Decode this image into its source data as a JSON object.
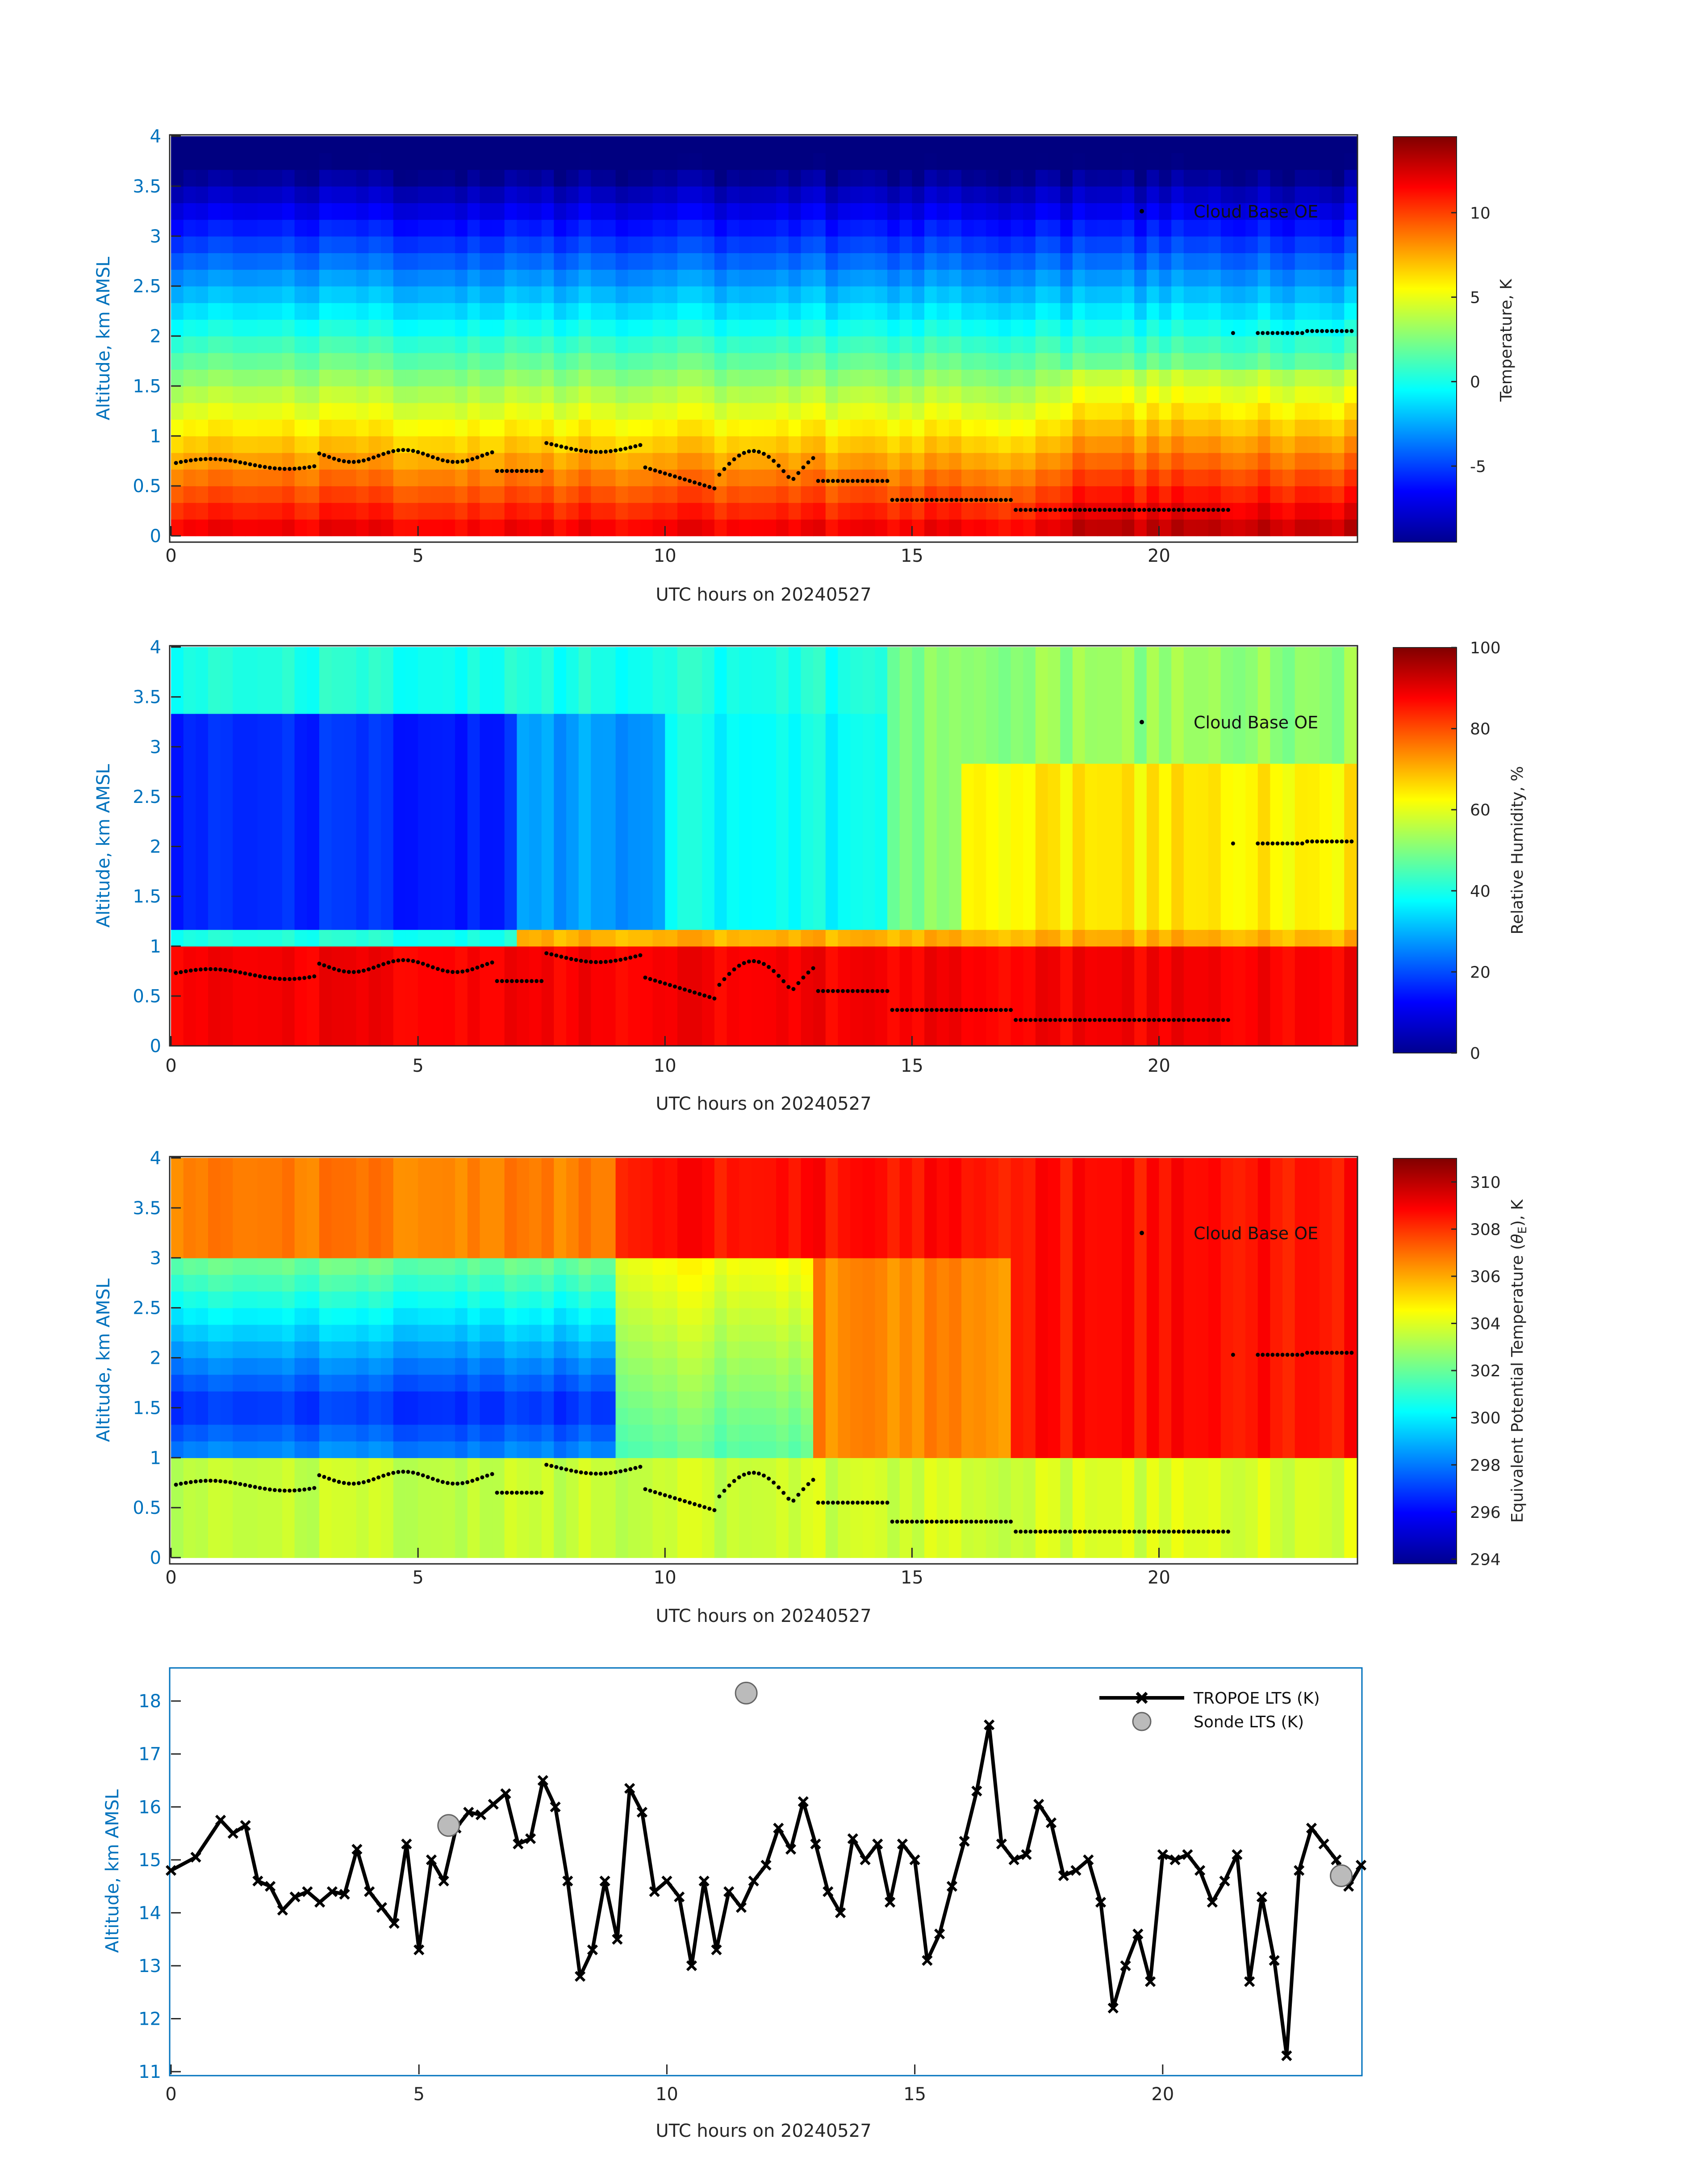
{
  "figure": {
    "x_tick_labels": [
      "0",
      "5",
      "10",
      "15",
      "20"
    ],
    "colors": {
      "axis_label": "#0072BD",
      "axis": "#262626",
      "dots": "#000000"
    }
  },
  "chart_data": [
    {
      "type": "heatmap",
      "panel": "temperature",
      "xlabel": "UTC hours on 20240527",
      "ylabel": "Altitude, km AMSL",
      "xlim": [
        0,
        24
      ],
      "ylim": [
        0,
        4
      ],
      "x_ticks": [
        0,
        5,
        10,
        15,
        20
      ],
      "y_ticks": [
        0,
        0.5,
        1,
        1.5,
        2,
        2.5,
        3,
        3.5,
        4
      ],
      "y_tick_labels": [
        "0",
        "0.5",
        "1",
        "1.5",
        "2",
        "2.5",
        "3",
        "3.5",
        "4"
      ],
      "colorbar": {
        "label": "Temperature, K",
        "range": [
          -9.5,
          14.5
        ],
        "ticks": [
          -5,
          0,
          5,
          10
        ],
        "tick_labels": [
          "-5",
          "0",
          "5",
          "10"
        ],
        "colormap": "jet"
      },
      "legend": {
        "label": "Cloud Base OE",
        "position": "top-right"
      }
    },
    {
      "type": "heatmap",
      "panel": "relative_humidity",
      "xlabel": "UTC hours on 20240527",
      "ylabel": "Altitude, km AMSL",
      "xlim": [
        0,
        24
      ],
      "ylim": [
        0,
        4
      ],
      "x_ticks": [
        0,
        5,
        10,
        15,
        20
      ],
      "y_ticks": [
        0,
        0.5,
        1,
        1.5,
        2,
        2.5,
        3,
        3.5,
        4
      ],
      "y_tick_labels": [
        "0",
        "0.5",
        "1",
        "1.5",
        "2",
        "2.5",
        "3",
        "3.5",
        "4"
      ],
      "colorbar": {
        "label": "Relative Humidity, %",
        "range": [
          0,
          100
        ],
        "ticks": [
          0,
          20,
          40,
          60,
          80,
          100
        ],
        "tick_labels": [
          "0",
          "20",
          "40",
          "60",
          "80",
          "100"
        ],
        "colormap": "jet"
      },
      "legend": {
        "label": "Cloud Base OE",
        "position": "top-right"
      }
    },
    {
      "type": "heatmap",
      "panel": "equivalent_potential_temperature",
      "xlabel": "UTC hours on 20240527",
      "ylabel": "Altitude, km AMSL",
      "xlim": [
        0,
        24
      ],
      "ylim": [
        0,
        4
      ],
      "x_ticks": [
        0,
        5,
        10,
        15,
        20
      ],
      "y_ticks": [
        0,
        0.5,
        1,
        1.5,
        2,
        2.5,
        3,
        3.5,
        4
      ],
      "y_tick_labels": [
        "0",
        "0.5",
        "1",
        "1.5",
        "2",
        "2.5",
        "3",
        "3.5",
        "4"
      ],
      "colorbar": {
        "label_prefix": "Equivalent Potential Temperature (",
        "label_symbol": "θ",
        "label_sub": "E",
        "label_suffix": "), K",
        "range": [
          293.8,
          311
        ],
        "ticks": [
          294,
          296,
          298,
          300,
          302,
          304,
          306,
          308,
          310
        ],
        "tick_labels": [
          "294",
          "296",
          "298",
          "300",
          "302",
          "304",
          "306",
          "308",
          "310"
        ],
        "colormap": "jet"
      },
      "legend": {
        "label": "Cloud Base OE",
        "position": "top-right"
      }
    },
    {
      "type": "line",
      "panel": "lts",
      "xlabel": "UTC hours on 20240527",
      "ylabel": "Altitude, km AMSL",
      "xlim": [
        0,
        24
      ],
      "ylim": [
        10.95,
        18.6
      ],
      "x_ticks": [
        0,
        5,
        10,
        15,
        20
      ],
      "y_ticks": [
        11,
        12,
        13,
        14,
        15,
        16,
        17,
        18
      ],
      "y_tick_labels": [
        "11",
        "12",
        "13",
        "14",
        "15",
        "16",
        "17",
        "18"
      ],
      "legend": {
        "position": "top-right"
      },
      "series": [
        {
          "name": "TROPOE LTS (K)",
          "marker": "x",
          "color": "#000000",
          "points": [
            [
              0,
              14.8
            ],
            [
              0.5,
              15.05
            ],
            [
              1.0,
              15.75
            ],
            [
              1.25,
              15.5
            ],
            [
              1.5,
              15.65
            ],
            [
              1.75,
              14.6
            ],
            [
              2.0,
              14.5
            ],
            [
              2.25,
              14.05
            ],
            [
              2.5,
              14.3
            ],
            [
              2.75,
              14.4
            ],
            [
              3.0,
              14.2
            ],
            [
              3.25,
              14.4
            ],
            [
              3.5,
              14.35
            ],
            [
              3.75,
              15.2
            ],
            [
              4.0,
              14.4
            ],
            [
              4.25,
              14.1
            ],
            [
              4.5,
              13.8
            ],
            [
              4.75,
              15.3
            ],
            [
              5.0,
              13.3
            ],
            [
              5.25,
              15.0
            ],
            [
              5.5,
              14.6
            ],
            [
              5.75,
              15.6
            ],
            [
              6.0,
              15.9
            ],
            [
              6.25,
              15.85
            ],
            [
              6.5,
              16.05
            ],
            [
              6.75,
              16.25
            ],
            [
              7.0,
              15.3
            ],
            [
              7.25,
              15.4
            ],
            [
              7.5,
              16.5
            ],
            [
              7.75,
              16.0
            ],
            [
              8.0,
              14.6
            ],
            [
              8.25,
              12.8
            ],
            [
              8.5,
              13.3
            ],
            [
              8.75,
              14.6
            ],
            [
              9.0,
              13.5
            ],
            [
              9.25,
              16.35
            ],
            [
              9.5,
              15.9
            ],
            [
              9.75,
              14.4
            ],
            [
              10.0,
              14.6
            ],
            [
              10.25,
              14.3
            ],
            [
              10.5,
              13.0
            ],
            [
              10.75,
              14.6
            ],
            [
              11.0,
              13.3
            ],
            [
              11.25,
              14.4
            ],
            [
              11.5,
              14.1
            ],
            [
              11.75,
              14.6
            ],
            [
              12.0,
              14.9
            ],
            [
              12.25,
              15.6
            ],
            [
              12.5,
              15.2
            ],
            [
              12.75,
              16.1
            ],
            [
              13.0,
              15.3
            ],
            [
              13.25,
              14.4
            ],
            [
              13.5,
              14.0
            ],
            [
              13.75,
              15.4
            ],
            [
              14.0,
              15.0
            ],
            [
              14.25,
              15.3
            ],
            [
              14.5,
              14.2
            ],
            [
              14.75,
              15.3
            ],
            [
              15.0,
              15.0
            ],
            [
              15.25,
              13.1
            ],
            [
              15.5,
              13.6
            ],
            [
              15.75,
              14.5
            ],
            [
              16.0,
              15.35
            ],
            [
              16.25,
              16.3
            ],
            [
              16.5,
              17.55
            ],
            [
              16.75,
              15.3
            ],
            [
              17.0,
              15.0
            ],
            [
              17.25,
              15.1
            ],
            [
              17.5,
              16.05
            ],
            [
              17.75,
              15.7
            ],
            [
              18.0,
              14.7
            ],
            [
              18.25,
              14.8
            ],
            [
              18.5,
              15.0
            ],
            [
              18.75,
              14.2
            ],
            [
              19.0,
              12.2
            ],
            [
              19.25,
              13.0
            ],
            [
              19.5,
              13.6
            ],
            [
              19.75,
              12.7
            ],
            [
              20.0,
              15.1
            ],
            [
              20.25,
              15.0
            ],
            [
              20.5,
              15.1
            ],
            [
              20.75,
              14.8
            ],
            [
              21.0,
              14.2
            ],
            [
              21.25,
              14.6
            ],
            [
              21.5,
              15.1
            ],
            [
              21.75,
              12.7
            ],
            [
              22.0,
              14.3
            ],
            [
              22.25,
              13.1
            ],
            [
              22.5,
              11.3
            ],
            [
              22.75,
              14.8
            ],
            [
              23.0,
              15.6
            ],
            [
              23.25,
              15.3
            ],
            [
              23.5,
              15.0
            ],
            [
              23.75,
              14.5
            ],
            [
              24.0,
              14.9
            ]
          ]
        },
        {
          "name": "Sonde LTS (K)",
          "marker": "circle",
          "color": "#bbbbbb",
          "points": [
            [
              5.6,
              15.65
            ],
            [
              11.6,
              18.15
            ],
            [
              23.6,
              14.7
            ]
          ]
        }
      ]
    }
  ]
}
